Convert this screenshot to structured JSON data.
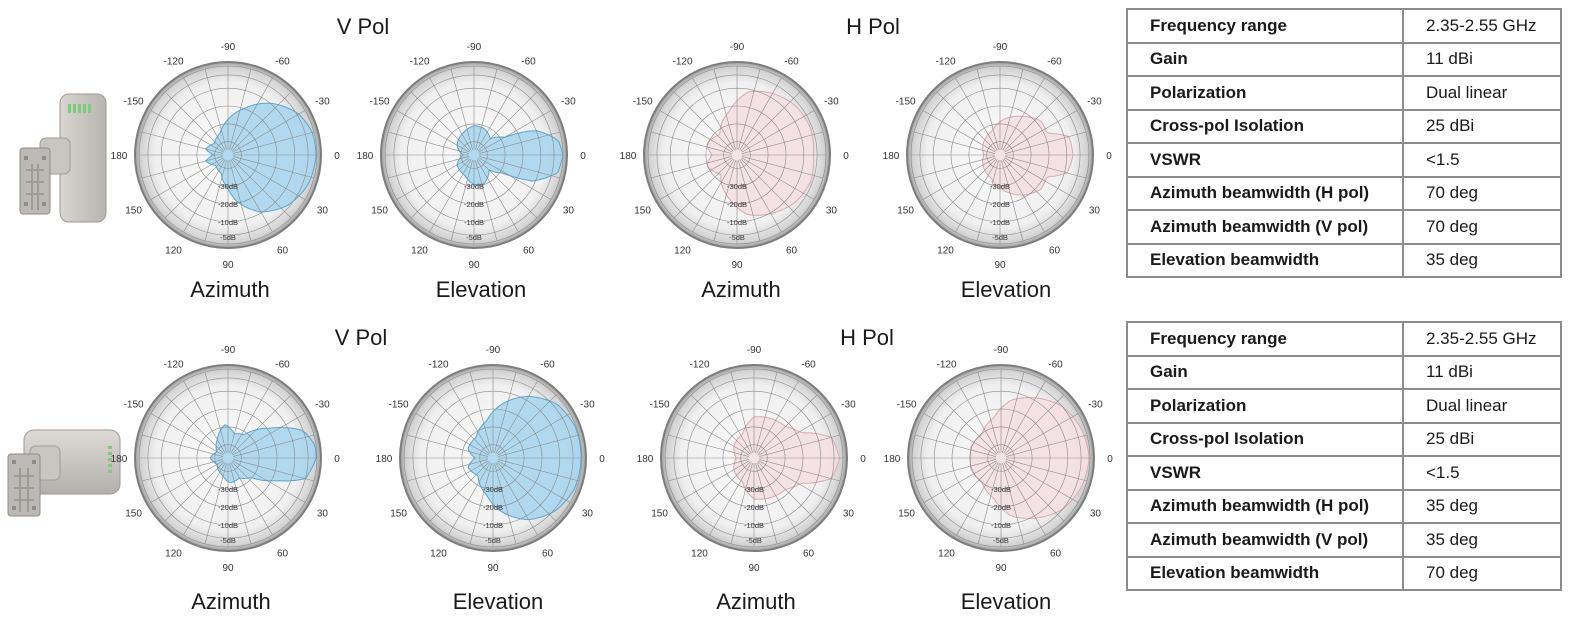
{
  "blocks": [
    {
      "groups": [
        {
          "title": "V Pol",
          "plots": [
            {
              "label": "Azimuth",
              "color": "#a9d6ee",
              "stroke": "#5aa5cf"
            },
            {
              "label": "Elevation",
              "color": "#a9d6ee",
              "stroke": "#5aa5cf"
            }
          ]
        },
        {
          "title": "H Pol",
          "plots": [
            {
              "label": "Azimuth",
              "color": "#f4dfe1",
              "stroke": "#d9a9ae"
            },
            {
              "label": "Elevation",
              "color": "#f4dfe1",
              "stroke": "#d9a9ae"
            }
          ]
        }
      ],
      "specs": [
        {
          "key": "Frequency range",
          "value": "2.35-2.55 GHz"
        },
        {
          "key": "Gain",
          "value": "11 dBi"
        },
        {
          "key": "Polarization",
          "value": "Dual linear"
        },
        {
          "key": "Cross-pol Isolation",
          "value": "25 dBi"
        },
        {
          "key": "VSWR",
          "value": "<1.5"
        },
        {
          "key": "Azimuth beamwidth (H pol)",
          "value": "70 deg"
        },
        {
          "key": "Azimuth beamwidth (V pol)",
          "value": "70 deg"
        },
        {
          "key": "Elevation beamwidth",
          "value": "35 deg"
        }
      ]
    },
    {
      "groups": [
        {
          "title": "V Pol",
          "plots": [
            {
              "label": "Azimuth",
              "color": "#a9d6ee",
              "stroke": "#5aa5cf"
            },
            {
              "label": "Elevation",
              "color": "#a9d6ee",
              "stroke": "#5aa5cf"
            }
          ]
        },
        {
          "title": "H Pol",
          "plots": [
            {
              "label": "Azimuth",
              "color": "#f4dfe1",
              "stroke": "#d9a9ae"
            },
            {
              "label": "Elevation",
              "color": "#f4dfe1",
              "stroke": "#d9a9ae"
            }
          ]
        }
      ],
      "specs": [
        {
          "key": "Frequency range",
          "value": "2.35-2.55 GHz"
        },
        {
          "key": "Gain",
          "value": "11 dBi"
        },
        {
          "key": "Polarization",
          "value": "Dual linear"
        },
        {
          "key": "Cross-pol Isolation",
          "value": "25 dBi"
        },
        {
          "key": "VSWR",
          "value": "<1.5"
        },
        {
          "key": "Azimuth beamwidth (H pol)",
          "value": "35 deg"
        },
        {
          "key": "Azimuth beamwidth (V pol)",
          "value": "35 deg"
        },
        {
          "key": "Elevation beamwidth",
          "value": "70 deg"
        }
      ]
    }
  ],
  "polar": {
    "angle_labels": [
      "-90",
      "-60",
      "-30",
      "0",
      "30",
      "60",
      "90",
      "120",
      "150",
      "180",
      "-150",
      "-120"
    ],
    "ring_labels": [
      "-30dB",
      "-20dB",
      "-10dB",
      "-5dB"
    ]
  }
}
